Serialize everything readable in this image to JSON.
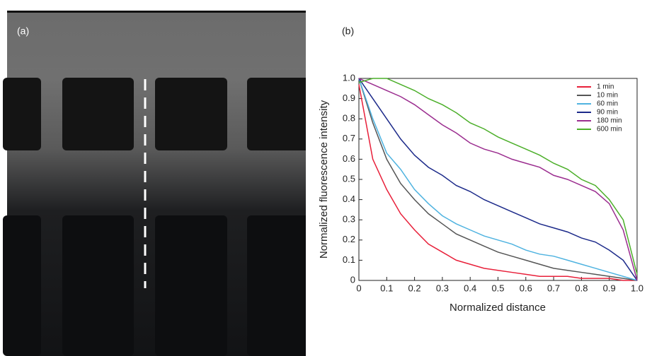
{
  "figure": {
    "labels": [
      "(a)",
      "(b)"
    ]
  },
  "chart_data": {
    "type": "line",
    "xlabel": "Normalized distance",
    "ylabel": "Normalized fluorescence intensity",
    "x": [
      0,
      0.05,
      0.1,
      0.15,
      0.2,
      0.25,
      0.3,
      0.35,
      0.4,
      0.45,
      0.5,
      0.55,
      0.6,
      0.65,
      0.7,
      0.75,
      0.8,
      0.85,
      0.9,
      0.95,
      1
    ],
    "series": [
      {
        "name": "1 min",
        "color": "#e8203a",
        "values": [
          0.97,
          0.6,
          0.45,
          0.33,
          0.25,
          0.18,
          0.14,
          0.1,
          0.08,
          0.06,
          0.05,
          0.04,
          0.03,
          0.02,
          0.02,
          0.02,
          0.01,
          0.01,
          0.01,
          0,
          0
        ]
      },
      {
        "name": "10 min",
        "color": "#555555",
        "values": [
          1,
          0.78,
          0.6,
          0.48,
          0.4,
          0.33,
          0.28,
          0.23,
          0.2,
          0.17,
          0.14,
          0.12,
          0.1,
          0.08,
          0.06,
          0.05,
          0.04,
          0.03,
          0.02,
          0.01,
          0
        ]
      },
      {
        "name": "60 min",
        "color": "#4fb3e0",
        "values": [
          1,
          0.8,
          0.63,
          0.55,
          0.45,
          0.38,
          0.32,
          0.28,
          0.25,
          0.22,
          0.2,
          0.18,
          0.15,
          0.13,
          0.12,
          0.1,
          0.08,
          0.06,
          0.04,
          0.02,
          0
        ]
      },
      {
        "name": "90 min",
        "color": "#1c2a8a",
        "values": [
          1,
          0.9,
          0.8,
          0.7,
          0.62,
          0.56,
          0.52,
          0.47,
          0.44,
          0.4,
          0.37,
          0.34,
          0.31,
          0.28,
          0.26,
          0.24,
          0.21,
          0.19,
          0.15,
          0.1,
          0
        ]
      },
      {
        "name": "180 min",
        "color": "#9b2d8f",
        "values": [
          1,
          0.97,
          0.94,
          0.91,
          0.87,
          0.82,
          0.77,
          0.73,
          0.68,
          0.65,
          0.63,
          0.6,
          0.58,
          0.56,
          0.52,
          0.5,
          0.47,
          0.44,
          0.38,
          0.25,
          0
        ]
      },
      {
        "name": "600 min",
        "color": "#4caf2a",
        "values": [
          0.98,
          1,
          1,
          0.97,
          0.94,
          0.9,
          0.87,
          0.83,
          0.78,
          0.75,
          0.71,
          0.68,
          0.65,
          0.62,
          0.58,
          0.55,
          0.5,
          0.47,
          0.4,
          0.3,
          0.03
        ]
      }
    ],
    "xlim": [
      0,
      1
    ],
    "ylim": [
      0,
      1
    ],
    "xticks": [
      0,
      0.1,
      0.2,
      0.3,
      0.4,
      0.5,
      0.6,
      0.7,
      0.8,
      0.9,
      {
        "value": 1,
        "label": "1.0"
      }
    ],
    "yticks": [
      0,
      0.1,
      0.2,
      0.3,
      0.4,
      0.5,
      0.6,
      0.7,
      0.8,
      0.9,
      {
        "value": 1,
        "label": "1.0"
      }
    ],
    "legend": "upper right"
  }
}
